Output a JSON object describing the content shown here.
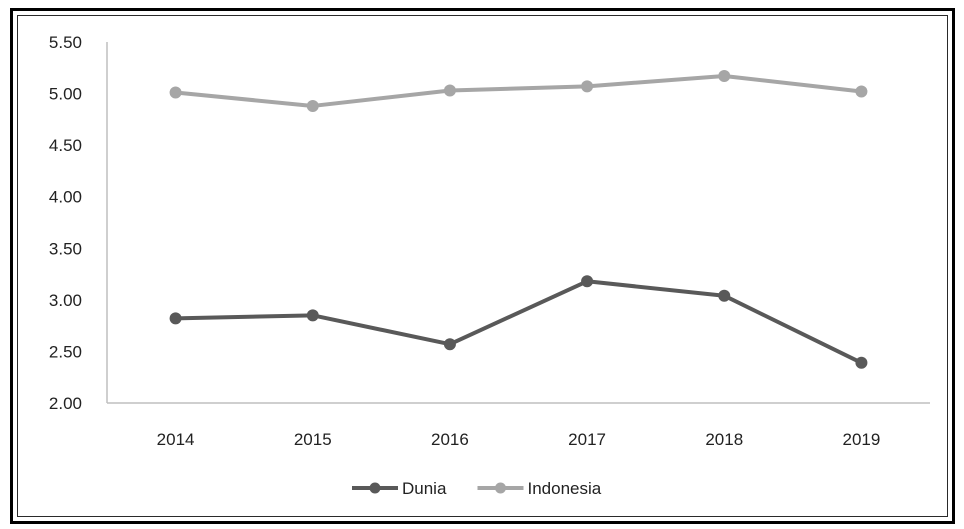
{
  "chart_data": {
    "type": "line",
    "title": "",
    "xlabel": "",
    "ylabel": "",
    "categories": [
      "2014",
      "2015",
      "2016",
      "2017",
      "2018",
      "2019"
    ],
    "ylim": [
      2.0,
      5.5
    ],
    "yticks": [
      "2.00",
      "2.50",
      "3.00",
      "3.50",
      "4.00",
      "4.50",
      "5.00",
      "5.50"
    ],
    "grid": false,
    "legend_position": "bottom",
    "series": [
      {
        "name": "Dunia",
        "color": "#595959",
        "values": [
          2.82,
          2.85,
          2.57,
          3.18,
          3.04,
          2.39
        ]
      },
      {
        "name": "Indonesia",
        "color": "#a6a6a6",
        "values": [
          5.01,
          4.88,
          5.03,
          5.07,
          5.17,
          5.02
        ]
      }
    ]
  }
}
